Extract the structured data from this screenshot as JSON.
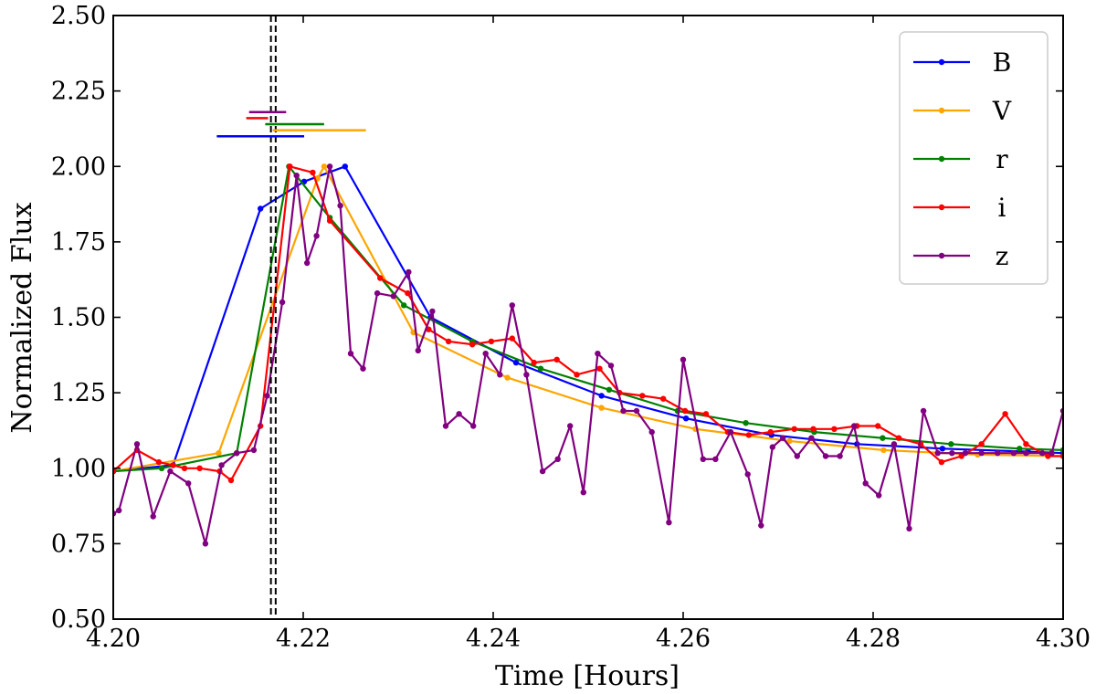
{
  "chart_data": {
    "type": "line",
    "title": "",
    "xlabel": "Time [Hours]",
    "ylabel": "Normalized Flux",
    "xlim": [
      4.2,
      4.3
    ],
    "ylim": [
      0.5,
      2.5
    ],
    "xticks": [
      "4.20",
      "4.22",
      "4.24",
      "4.26",
      "4.28",
      "4.30"
    ],
    "yticks": [
      "0.50",
      "0.75",
      "1.00",
      "1.25",
      "1.50",
      "1.75",
      "2.00",
      "2.25",
      "2.50"
    ],
    "grid": false,
    "legend_position": "top-right",
    "vlines": [
      {
        "x": 4.2166,
        "style": "dashed",
        "color": "#000000"
      },
      {
        "x": 4.2171,
        "style": "dashed",
        "color": "#000000"
      }
    ],
    "error_bars": [
      {
        "band": "z",
        "y": 2.18,
        "x_start": 4.2143,
        "x_end": 4.2182
      },
      {
        "band": "i",
        "y": 2.16,
        "x_start": 4.214,
        "x_end": 4.2163
      },
      {
        "band": "r",
        "y": 2.14,
        "x_start": 4.216,
        "x_end": 4.2222
      },
      {
        "band": "V",
        "y": 2.12,
        "x_start": 4.2168,
        "x_end": 4.2266
      },
      {
        "band": "B",
        "y": 2.1,
        "x_start": 4.2109,
        "x_end": 4.2201
      }
    ],
    "series": [
      {
        "name": "B",
        "color": "#0000ff",
        "x": [
          4.2,
          4.2063,
          4.2155,
          4.2201,
          4.2244,
          4.2334,
          4.2424,
          4.2514,
          4.2603,
          4.2693,
          4.2783,
          4.2873,
          4.2963,
          4.3
        ],
        "y": [
          0.99,
          1.01,
          1.86,
          1.95,
          2.0,
          1.5,
          1.35,
          1.24,
          1.165,
          1.11,
          1.08,
          1.065,
          1.055,
          1.05
        ]
      },
      {
        "name": "V",
        "color": "#ffa500",
        "x": [
          4.2,
          4.2111,
          4.2215,
          4.2222,
          4.2316,
          4.2415,
          4.2514,
          4.2613,
          4.2712,
          4.2811,
          4.291,
          4.3
        ],
        "y": [
          0.99,
          1.05,
          1.96,
          2.0,
          1.45,
          1.3,
          1.2,
          1.13,
          1.09,
          1.06,
          1.045,
          1.04
        ]
      },
      {
        "name": "r",
        "color": "#008000",
        "x": [
          4.2,
          4.2051,
          4.213,
          4.2185,
          4.2228,
          4.2306,
          4.2378,
          4.245,
          4.2522,
          4.2594,
          4.2666,
          4.2738,
          4.281,
          4.2882,
          4.2954,
          4.3
        ],
        "y": [
          0.99,
          1.0,
          1.05,
          2.0,
          1.83,
          1.54,
          1.42,
          1.33,
          1.26,
          1.19,
          1.15,
          1.12,
          1.1,
          1.08,
          1.065,
          1.06
        ]
      },
      {
        "name": "i",
        "color": "#ff0000",
        "x": [
          4.2,
          4.2025,
          4.2048,
          4.2063,
          4.2075,
          4.2091,
          4.2112,
          4.2124,
          4.2155,
          4.2186,
          4.221,
          4.2228,
          4.2281,
          4.231,
          4.2332,
          4.2353,
          4.2378,
          4.2398,
          4.242,
          4.2443,
          4.2467,
          4.2488,
          4.2512,
          4.2533,
          4.2557,
          4.2579,
          4.2602,
          4.2624,
          4.2647,
          4.2669,
          4.2692,
          4.2717,
          4.2737,
          4.2759,
          4.2783,
          4.2805,
          4.2827,
          4.285,
          4.2872,
          4.2893,
          4.2914,
          4.2939,
          4.2961,
          4.2984,
          4.3
        ],
        "y": [
          0.99,
          1.06,
          1.02,
          1.01,
          1.0,
          1.0,
          0.99,
          0.96,
          1.14,
          2.0,
          1.98,
          1.82,
          1.63,
          1.58,
          1.46,
          1.42,
          1.41,
          1.42,
          1.43,
          1.35,
          1.36,
          1.31,
          1.33,
          1.25,
          1.24,
          1.23,
          1.19,
          1.18,
          1.12,
          1.11,
          1.12,
          1.13,
          1.13,
          1.13,
          1.14,
          1.14,
          1.1,
          1.08,
          1.02,
          1.04,
          1.08,
          1.18,
          1.08,
          1.04,
          1.04
        ]
      },
      {
        "name": "z",
        "color": "#800080",
        "x": [
          4.2,
          4.2006,
          4.2025,
          4.2042,
          4.206,
          4.2079,
          4.2097,
          4.2114,
          4.213,
          4.2148,
          4.2162,
          4.2178,
          4.2193,
          4.2204,
          4.2214,
          4.2228,
          4.2239,
          4.225,
          4.2263,
          4.2278,
          4.2295,
          4.2311,
          4.2321,
          4.2336,
          4.235,
          4.2364,
          4.2379,
          4.2392,
          4.2407,
          4.242,
          4.2435,
          4.2452,
          4.2468,
          4.2481,
          4.2495,
          4.251,
          4.2524,
          4.2537,
          4.2551,
          4.2567,
          4.2585,
          4.26,
          4.2621,
          4.2634,
          4.265,
          4.2668,
          4.2682,
          4.2694,
          4.2705,
          4.272,
          4.2735,
          4.275,
          4.2765,
          4.278,
          4.2792,
          4.2806,
          4.2822,
          4.2838,
          4.2853,
          4.2868,
          4.2883,
          4.2897,
          4.2914,
          4.2931,
          4.2948,
          4.2961,
          4.2978,
          4.2988,
          4.3
        ],
        "y": [
          0.85,
          0.86,
          1.08,
          0.84,
          0.99,
          0.95,
          0.75,
          1.01,
          1.05,
          1.06,
          1.24,
          1.55,
          1.97,
          1.68,
          1.77,
          2.0,
          1.87,
          1.38,
          1.33,
          1.58,
          1.57,
          1.65,
          1.39,
          1.52,
          1.14,
          1.18,
          1.14,
          1.38,
          1.31,
          1.54,
          1.31,
          0.99,
          1.03,
          1.14,
          0.92,
          1.38,
          1.34,
          1.19,
          1.19,
          1.12,
          0.82,
          1.36,
          1.03,
          1.03,
          1.12,
          0.98,
          0.81,
          1.07,
          1.1,
          1.04,
          1.1,
          1.04,
          1.04,
          1.14,
          0.95,
          0.91,
          1.08,
          0.8,
          1.19,
          1.05,
          1.05,
          1.05,
          1.05,
          1.05,
          1.05,
          1.05,
          1.05,
          1.05,
          1.19
        ]
      }
    ]
  }
}
